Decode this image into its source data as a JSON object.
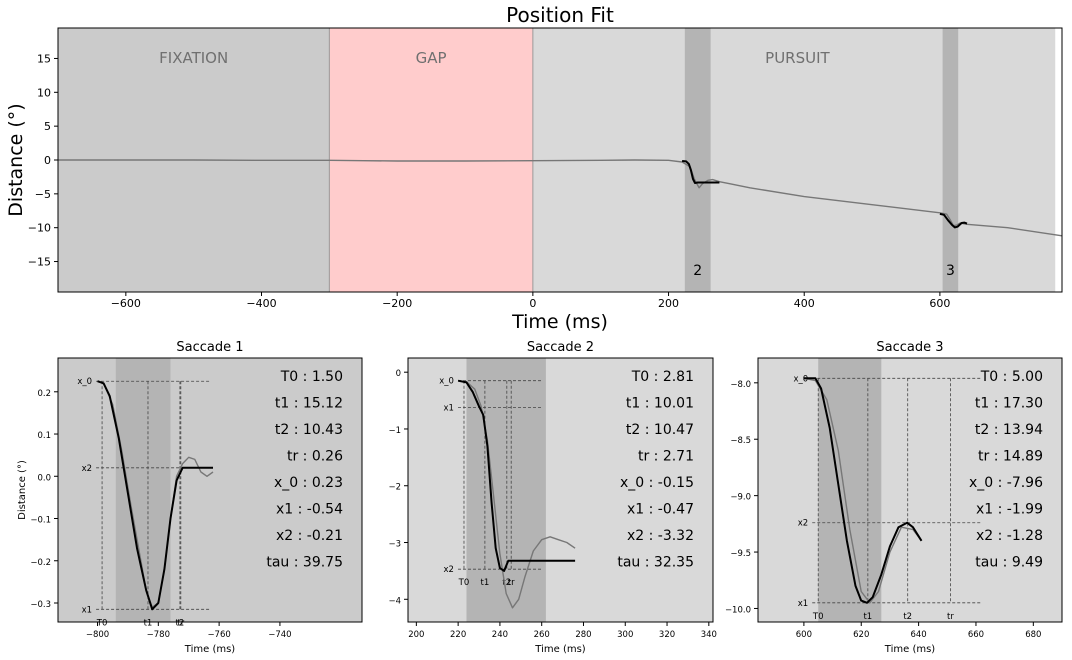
{
  "chart_data": [
    {
      "type": "line",
      "title": "Position Fit",
      "xlabel": "Time (ms)",
      "ylabel": "Distance (°)",
      "xlim": [
        -700,
        780
      ],
      "ylim": [
        -19.5,
        19.5
      ],
      "xticks": [
        -600,
        -400,
        -200,
        0,
        200,
        400,
        600
      ],
      "yticks": [
        15,
        10,
        5,
        0,
        -5,
        -10,
        -15
      ],
      "phases": [
        {
          "label": "FIXATION",
          "start": -700,
          "end": -300,
          "color": "#cbcbcb"
        },
        {
          "label": "GAP",
          "start": -300,
          "end": 0,
          "color": "#ffcccc"
        },
        {
          "label": "PURSUIT",
          "start": 0,
          "end": 770,
          "color": "#d9d9d9"
        }
      ],
      "saccade_windows": [
        {
          "label": "2",
          "start": 224,
          "end": 262
        },
        {
          "label": "3",
          "start": 604,
          "end": 627
        }
      ],
      "series": [
        {
          "color": "#777777",
          "x": [
            -700,
            -600,
            -500,
            -400,
            -300,
            -250,
            -200,
            -100,
            0,
            100,
            150,
            200,
            220,
            232,
            238,
            245,
            250,
            258,
            265,
            275,
            290,
            320,
            400,
            500,
            600,
            610,
            615,
            620,
            625,
            630,
            640,
            700,
            780
          ],
          "y": [
            0,
            0,
            0,
            -0.05,
            -0.05,
            -0.1,
            -0.15,
            -0.15,
            -0.1,
            -0.05,
            0,
            -0.05,
            -0.3,
            -1.0,
            -2.8,
            -4.1,
            -3.5,
            -3.0,
            -2.9,
            -3.2,
            -3.5,
            -4.1,
            -5.4,
            -6.6,
            -7.8,
            -8.0,
            -8.8,
            -9.7,
            -9.6,
            -9.3,
            -9.5,
            -10.0,
            -11.2
          ]
        },
        {
          "color": "#000000",
          "x": [
            220,
            226,
            230,
            233,
            236,
            239,
            243,
            247,
            275
          ],
          "y": [
            -0.15,
            -0.2,
            -0.6,
            -1.5,
            -2.8,
            -3.4,
            -3.32,
            -3.32,
            -3.32
          ],
          "name": ""
        },
        {
          "color": "#000000",
          "x": [
            600,
            606,
            612,
            618,
            622,
            626,
            632,
            636,
            640
          ],
          "y": [
            -7.96,
            -8.1,
            -8.9,
            -9.6,
            -9.95,
            -9.85,
            -9.3,
            -9.25,
            -9.4
          ],
          "name": ""
        }
      ]
    },
    {
      "type": "line",
      "title": "Saccade 1",
      "xlabel": "Time (ms)",
      "ylabel": "Distance (°)",
      "xlim": [
        -813,
        -713
      ],
      "ylim": [
        -0.345,
        0.28
      ],
      "xticks": [
        -800,
        -780,
        -760,
        -740
      ],
      "yticks": [
        0.2,
        0.1,
        0.0,
        -0.1,
        -0.2,
        -0.3
      ],
      "ytick_labels": [
        "0.2",
        "0.1",
        "0.0",
        "−0.1",
        "−0.2",
        "−0.3"
      ],
      "bg_color": "#cbcbcb",
      "window": [
        -794,
        -776
      ],
      "markers": {
        "x_levels": [
          {
            "label": "x_0",
            "value": 0.225
          },
          {
            "label": "x2",
            "value": 0.02
          },
          {
            "label": "x1",
            "value": -0.315
          }
        ],
        "t_lines": [
          {
            "label": "T0",
            "value": -798.5
          },
          {
            "label": "t1",
            "value": -783.4
          },
          {
            "label": "t2",
            "value": -772.9
          },
          {
            "label": "tr",
            "value": -772.6
          }
        ]
      },
      "params": [
        "T0 : 1.50",
        "t1 : 15.12",
        "t2 : 10.43",
        "tr : 0.26",
        "x_0 : 0.23",
        "x1 : -0.54",
        "x2 : -0.21",
        "tau : 39.75"
      ],
      "series": [
        {
          "color": "#777777",
          "x": [
            -800,
            -798,
            -795,
            -792,
            -789,
            -786,
            -784,
            -782,
            -780,
            -778,
            -776,
            -774,
            -772,
            -770,
            -768,
            -766,
            -764,
            -762
          ],
          "y": [
            0.225,
            0.22,
            0.17,
            0.06,
            -0.07,
            -0.19,
            -0.27,
            -0.31,
            -0.3,
            -0.22,
            -0.1,
            0.0,
            0.03,
            0.045,
            0.04,
            0.01,
            0.0,
            0.01
          ]
        },
        {
          "color": "#000000",
          "x": [
            -800,
            -798,
            -796,
            -793,
            -790,
            -787,
            -784,
            -782,
            -780,
            -778,
            -776,
            -774,
            -772,
            -770,
            -766,
            -762
          ],
          "y": [
            0.225,
            0.22,
            0.19,
            0.09,
            -0.04,
            -0.17,
            -0.27,
            -0.315,
            -0.3,
            -0.22,
            -0.1,
            -0.01,
            0.02,
            0.02,
            0.02,
            0.02
          ]
        }
      ]
    },
    {
      "type": "line",
      "title": "Saccade 2",
      "xlabel": "Time (ms)",
      "ylabel": "",
      "xlim": [
        196,
        342
      ],
      "ylim": [
        -4.4,
        0.25
      ],
      "xticks": [
        200,
        220,
        240,
        260,
        280,
        300,
        320,
        340
      ],
      "yticks": [
        0,
        -1,
        -2,
        -3,
        -4
      ],
      "ytick_labels": [
        "0",
        "−1",
        "−2",
        "−3",
        "−4"
      ],
      "bg_color": "#d9d9d9",
      "window": [
        224,
        262
      ],
      "markers": {
        "x_levels": [
          {
            "label": "x_0",
            "value": -0.15
          },
          {
            "label": "x1",
            "value": -0.62
          },
          {
            "label": "x2",
            "value": -3.47
          }
        ],
        "t_lines": [
          {
            "label": "T0",
            "value": 222.8
          },
          {
            "label": "t1",
            "value": 232.8
          },
          {
            "label": "t2",
            "value": 243.3
          },
          {
            "label": "tr",
            "value": 245.4
          }
        ]
      },
      "params": [
        "T0 : 2.81",
        "t1 : 10.01",
        "t2 : 10.47",
        "tr : 2.71",
        "x_0 : -0.15",
        "x1 : -0.47",
        "x2 : -3.32",
        "tau : 32.35"
      ],
      "series": [
        {
          "color": "#777777",
          "x": [
            220,
            224,
            228,
            231,
            234,
            237,
            240,
            243,
            246,
            249,
            252,
            256,
            260,
            264,
            268,
            272,
            276
          ],
          "y": [
            -0.15,
            -0.17,
            -0.3,
            -0.6,
            -1.2,
            -2.2,
            -3.2,
            -3.9,
            -4.15,
            -4.0,
            -3.6,
            -3.15,
            -2.95,
            -2.9,
            -2.95,
            -3.0,
            -3.1
          ]
        },
        {
          "color": "#000000",
          "x": [
            220,
            224,
            227,
            230,
            232,
            234,
            236,
            238,
            240,
            242,
            244,
            246,
            250,
            260,
            276
          ],
          "y": [
            -0.15,
            -0.18,
            -0.35,
            -0.6,
            -0.75,
            -1.3,
            -2.3,
            -3.1,
            -3.45,
            -3.5,
            -3.32,
            -3.32,
            -3.32,
            -3.32,
            -3.32
          ]
        }
      ]
    },
    {
      "type": "line",
      "title": "Saccade 3",
      "xlabel": "Time (ms)",
      "ylabel": "",
      "xlim": [
        584,
        690
      ],
      "ylim": [
        -10.12,
        -7.78
      ],
      "xticks": [
        600,
        620,
        640,
        660,
        680
      ],
      "yticks": [
        -8.0,
        -8.5,
        -9.0,
        -9.5,
        -10.0
      ],
      "ytick_labels": [
        "−8.0",
        "−8.5",
        "−9.0",
        "−9.5",
        "−10.0"
      ],
      "bg_color": "#d9d9d9",
      "window": [
        605,
        627
      ],
      "markers": {
        "x_levels": [
          {
            "label": "x_0",
            "value": -7.96
          },
          {
            "label": "x2",
            "value": -9.24
          },
          {
            "label": "x1",
            "value": -9.95
          }
        ],
        "t_lines": [
          {
            "label": "T0",
            "value": 605
          },
          {
            "label": "t1",
            "value": 622.3
          },
          {
            "label": "t2",
            "value": 636.2
          },
          {
            "label": "tr",
            "value": 651.1
          }
        ]
      },
      "params": [
        "T0 : 5.00",
        "t1 : 17.30",
        "t2 : 13.94",
        "tr : 14.89",
        "x_0 : -7.96",
        "x1 : -1.99",
        "x2 : -1.28",
        "tau : 9.49"
      ],
      "series": [
        {
          "color": "#777777",
          "x": [
            600,
            604,
            608,
            612,
            616,
            620,
            623,
            626,
            630,
            634,
            638,
            641
          ],
          "y": [
            -7.96,
            -7.98,
            -8.15,
            -8.6,
            -9.3,
            -9.85,
            -9.95,
            -9.85,
            -9.5,
            -9.28,
            -9.3,
            -9.4
          ]
        },
        {
          "color": "#000000",
          "x": [
            600,
            604,
            606,
            609,
            612,
            615,
            618,
            620,
            622,
            624,
            627,
            630,
            633,
            636,
            638,
            641
          ],
          "y": [
            -7.96,
            -7.96,
            -8.05,
            -8.4,
            -8.9,
            -9.4,
            -9.8,
            -9.93,
            -9.95,
            -9.9,
            -9.7,
            -9.45,
            -9.28,
            -9.24,
            -9.28,
            -9.4
          ]
        }
      ]
    }
  ]
}
